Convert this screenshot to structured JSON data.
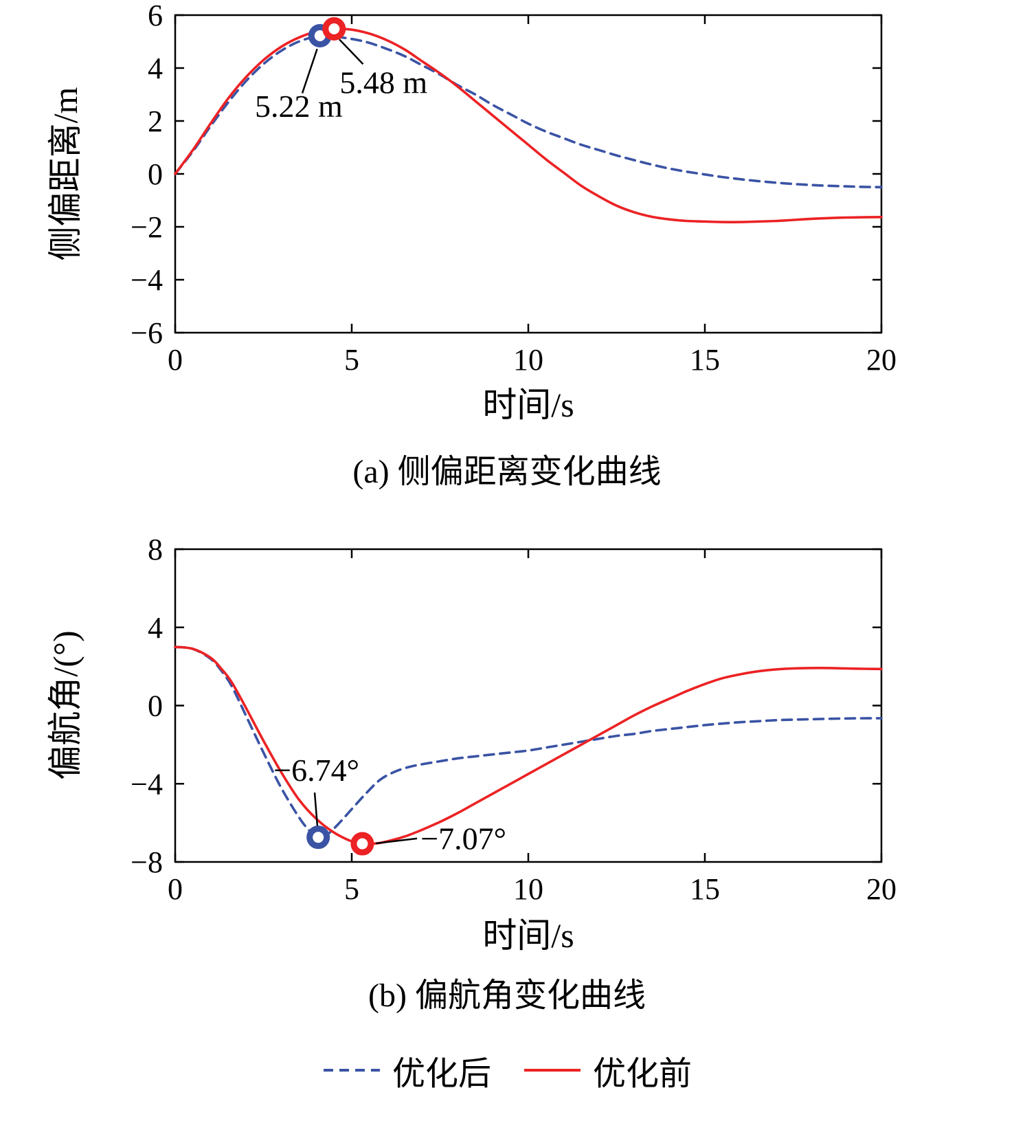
{
  "page": {
    "background": "#ffffff"
  },
  "colors": {
    "axis": "#000000",
    "blue": "#3a53a4",
    "red": "#ec2224"
  },
  "legend": {
    "items": [
      {
        "label": "优化后",
        "color": "blue",
        "dash": true
      },
      {
        "label": "优化前",
        "color": "red",
        "dash": false
      }
    ]
  },
  "chart_data": [
    {
      "type": "line",
      "title": "(a) 侧偏距离变化曲线",
      "xlabel": "时间/s",
      "ylabel": "侧偏距离/m",
      "xlim": [
        0,
        20
      ],
      "ylim": [
        -6,
        6
      ],
      "xticks": [
        0,
        5,
        10,
        15,
        20
      ],
      "yticks": [
        -6,
        -4,
        -2,
        0,
        2,
        4,
        6
      ],
      "grid": false,
      "series": [
        {
          "name": "优化后",
          "color": "blue",
          "dash": true,
          "points": [
            [
              0,
              0
            ],
            [
              0.5,
              0.85
            ],
            [
              1,
              1.8
            ],
            [
              1.5,
              2.7
            ],
            [
              2,
              3.5
            ],
            [
              2.5,
              4.15
            ],
            [
              3,
              4.65
            ],
            [
              3.5,
              5.0
            ],
            [
              4,
              5.2
            ],
            [
              4.3,
              5.22
            ],
            [
              5,
              5.1
            ],
            [
              5.5,
              4.95
            ],
            [
              6,
              4.72
            ],
            [
              6.5,
              4.45
            ],
            [
              7,
              4.1
            ],
            [
              7.5,
              3.75
            ],
            [
              8,
              3.35
            ],
            [
              8.5,
              3.0
            ],
            [
              9,
              2.6
            ],
            [
              9.5,
              2.25
            ],
            [
              10,
              1.9
            ],
            [
              10.5,
              1.6
            ],
            [
              11,
              1.35
            ],
            [
              11.5,
              1.1
            ],
            [
              12,
              0.9
            ],
            [
              12.5,
              0.7
            ],
            [
              13,
              0.52
            ],
            [
              13.5,
              0.35
            ],
            [
              14,
              0.2
            ],
            [
              14.5,
              0.08
            ],
            [
              15,
              -0.02
            ],
            [
              15.5,
              -0.12
            ],
            [
              16,
              -0.2
            ],
            [
              16.5,
              -0.27
            ],
            [
              17,
              -0.33
            ],
            [
              17.5,
              -0.38
            ],
            [
              18,
              -0.42
            ],
            [
              18.5,
              -0.45
            ],
            [
              19,
              -0.47
            ],
            [
              19.5,
              -0.49
            ],
            [
              20,
              -0.5
            ]
          ]
        },
        {
          "name": "优化前",
          "color": "red",
          "dash": false,
          "points": [
            [
              0,
              0
            ],
            [
              0.5,
              0.9
            ],
            [
              1,
              1.9
            ],
            [
              1.5,
              2.85
            ],
            [
              2,
              3.65
            ],
            [
              2.5,
              4.3
            ],
            [
              3,
              4.8
            ],
            [
              3.5,
              5.15
            ],
            [
              4,
              5.38
            ],
            [
              4.5,
              5.48
            ],
            [
              5,
              5.45
            ],
            [
              5.5,
              5.3
            ],
            [
              6,
              5.05
            ],
            [
              6.5,
              4.7
            ],
            [
              7,
              4.25
            ],
            [
              7.5,
              3.8
            ],
            [
              8,
              3.3
            ],
            [
              8.5,
              2.75
            ],
            [
              9,
              2.2
            ],
            [
              9.5,
              1.65
            ],
            [
              10,
              1.1
            ],
            [
              10.5,
              0.55
            ],
            [
              11,
              0.05
            ],
            [
              11.5,
              -0.45
            ],
            [
              12,
              -0.85
            ],
            [
              12.5,
              -1.2
            ],
            [
              13,
              -1.45
            ],
            [
              13.5,
              -1.62
            ],
            [
              14,
              -1.72
            ],
            [
              14.5,
              -1.78
            ],
            [
              15,
              -1.8
            ],
            [
              15.5,
              -1.82
            ],
            [
              16,
              -1.82
            ],
            [
              16.5,
              -1.8
            ],
            [
              17,
              -1.78
            ],
            [
              17.5,
              -1.74
            ],
            [
              18,
              -1.7
            ],
            [
              18.5,
              -1.67
            ],
            [
              19,
              -1.65
            ],
            [
              19.5,
              -1.64
            ],
            [
              20,
              -1.63
            ]
          ]
        }
      ],
      "markers": [
        {
          "x": 4.1,
          "y": 5.22,
          "color": "blue",
          "value_label": "5.22 m"
        },
        {
          "x": 4.5,
          "y": 5.48,
          "color": "red",
          "value_label": "5.48 m"
        }
      ],
      "annotations": [
        {
          "text": "5.22 m",
          "tx": 3.5,
          "ty": 2.15,
          "anchor": "middle",
          "line": [
            3.6,
            3.05,
            4.02,
            4.72
          ]
        },
        {
          "text": "5.48 m",
          "tx": 5.9,
          "ty": 3.05,
          "anchor": "middle",
          "line": [
            4.65,
            5.08,
            5.32,
            4.15
          ]
        }
      ]
    },
    {
      "type": "line",
      "title": "(b) 偏航角变化曲线",
      "xlabel": "时间/s",
      "ylabel": "偏航角/(°)",
      "xlim": [
        0,
        20
      ],
      "ylim": [
        -8,
        8
      ],
      "xticks": [
        0,
        5,
        10,
        15,
        20
      ],
      "yticks": [
        -8,
        -4,
        0,
        4,
        8
      ],
      "grid": false,
      "series": [
        {
          "name": "优化后",
          "color": "blue",
          "dash": true,
          "points": [
            [
              0,
              3.0
            ],
            [
              0.5,
              2.9
            ],
            [
              1,
              2.4
            ],
            [
              1.3,
              1.8
            ],
            [
              1.6,
              1.0
            ],
            [
              2,
              -0.5
            ],
            [
              2.5,
              -2.4
            ],
            [
              3,
              -4.2
            ],
            [
              3.5,
              -5.7
            ],
            [
              3.8,
              -6.4
            ],
            [
              4.05,
              -6.74
            ],
            [
              4.3,
              -6.6
            ],
            [
              4.6,
              -6.1
            ],
            [
              5,
              -5.3
            ],
            [
              5.4,
              -4.5
            ],
            [
              5.8,
              -3.8
            ],
            [
              6.2,
              -3.4
            ],
            [
              6.6,
              -3.15
            ],
            [
              7,
              -3.0
            ],
            [
              7.5,
              -2.85
            ],
            [
              8,
              -2.7
            ],
            [
              8.5,
              -2.6
            ],
            [
              9,
              -2.5
            ],
            [
              9.5,
              -2.4
            ],
            [
              10,
              -2.3
            ],
            [
              10.5,
              -2.15
            ],
            [
              11,
              -2.0
            ],
            [
              11.5,
              -1.85
            ],
            [
              12,
              -1.7
            ],
            [
              12.5,
              -1.55
            ],
            [
              13,
              -1.45
            ],
            [
              13.5,
              -1.3
            ],
            [
              14,
              -1.2
            ],
            [
              14.5,
              -1.1
            ],
            [
              15,
              -1.0
            ],
            [
              15.5,
              -0.92
            ],
            [
              16,
              -0.85
            ],
            [
              16.5,
              -0.8
            ],
            [
              17,
              -0.75
            ],
            [
              17.5,
              -0.72
            ],
            [
              18,
              -0.7
            ],
            [
              18.5,
              -0.68
            ],
            [
              19,
              -0.66
            ],
            [
              19.5,
              -0.65
            ],
            [
              20,
              -0.65
            ]
          ]
        },
        {
          "name": "优化前",
          "color": "red",
          "dash": false,
          "points": [
            [
              0,
              3.0
            ],
            [
              0.5,
              2.9
            ],
            [
              1,
              2.45
            ],
            [
              1.3,
              1.9
            ],
            [
              1.6,
              1.2
            ],
            [
              2,
              -0.1
            ],
            [
              2.5,
              -1.8
            ],
            [
              3,
              -3.4
            ],
            [
              3.5,
              -4.8
            ],
            [
              4,
              -5.8
            ],
            [
              4.5,
              -6.5
            ],
            [
              5,
              -6.95
            ],
            [
              5.3,
              -7.07
            ],
            [
              5.7,
              -7.05
            ],
            [
              6,
              -6.95
            ],
            [
              6.5,
              -6.7
            ],
            [
              7,
              -6.35
            ],
            [
              7.5,
              -5.95
            ],
            [
              8,
              -5.5
            ],
            [
              8.5,
              -5.0
            ],
            [
              9,
              -4.5
            ],
            [
              9.5,
              -4.0
            ],
            [
              10,
              -3.5
            ],
            [
              10.5,
              -3.0
            ],
            [
              11,
              -2.5
            ],
            [
              11.5,
              -2.0
            ],
            [
              12,
              -1.5
            ],
            [
              12.5,
              -1.0
            ],
            [
              13,
              -0.5
            ],
            [
              13.5,
              -0.05
            ],
            [
              14,
              0.35
            ],
            [
              14.5,
              0.75
            ],
            [
              15,
              1.1
            ],
            [
              15.5,
              1.4
            ],
            [
              16,
              1.6
            ],
            [
              16.5,
              1.75
            ],
            [
              17,
              1.85
            ],
            [
              17.5,
              1.9
            ],
            [
              18,
              1.92
            ],
            [
              18.5,
              1.92
            ],
            [
              19,
              1.9
            ],
            [
              19.5,
              1.88
            ],
            [
              20,
              1.87
            ]
          ]
        }
      ],
      "markers": [
        {
          "x": 4.05,
          "y": -6.74,
          "color": "blue",
          "value_label": "−6.74°"
        },
        {
          "x": 5.3,
          "y": -7.07,
          "color": "red",
          "value_label": "−7.07°"
        }
      ],
      "annotations": [
        {
          "text": "−6.74°",
          "tx": 4.0,
          "ty": -3.85,
          "anchor": "middle",
          "line": [
            3.95,
            -4.45,
            4.03,
            -6.25
          ]
        },
        {
          "text": "−7.07°",
          "tx": 6.95,
          "ty": -7.35,
          "anchor": "start",
          "line": [
            5.68,
            -7.05,
            6.85,
            -6.8
          ]
        }
      ]
    }
  ]
}
